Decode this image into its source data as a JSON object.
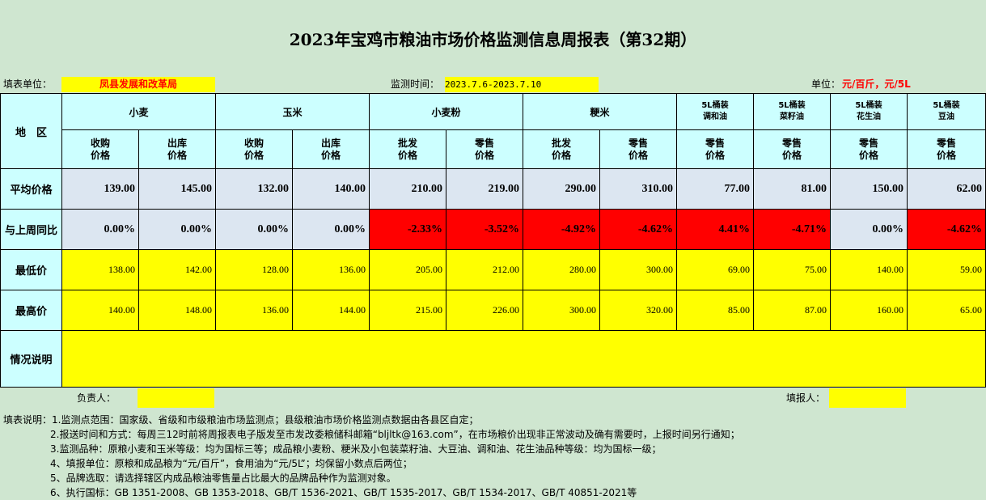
{
  "title": "2023年宝鸡市粮油市场价格监测信息周报表（第32期）",
  "info": {
    "unit_label": "填表单位：",
    "unit_value": "凤县发展和改革局",
    "period_label": "监测时间：",
    "period_value": "2023.7.6-2023.7.10",
    "measure_label": "单位：",
    "measure_value": "元/百斤，元/5L"
  },
  "header": {
    "region": "地　区",
    "groups": [
      "小麦",
      "玉米",
      "小麦粉",
      "粳米",
      "5L桶装调和油",
      "5L桶装菜籽油",
      "5L桶装花生油",
      "5L桶装豆油"
    ],
    "group_lines": [
      [
        "小麦"
      ],
      [
        "玉米"
      ],
      [
        "小麦粉"
      ],
      [
        "粳米"
      ],
      [
        "5L桶装",
        "调和油"
      ],
      [
        "5L桶装",
        "菜籽油"
      ],
      [
        "5L桶装",
        "花生油"
      ],
      [
        "5L桶装",
        "豆油"
      ]
    ],
    "subcols": [
      [
        "收购",
        "价格"
      ],
      [
        "出库",
        "价格"
      ],
      [
        "收购",
        "价格"
      ],
      [
        "出库",
        "价格"
      ],
      [
        "批发",
        "价格"
      ],
      [
        "零售",
        "价格"
      ],
      [
        "批发",
        "价格"
      ],
      [
        "零售",
        "价格"
      ],
      [
        "零售",
        "价格"
      ],
      [
        "零售",
        "价格"
      ],
      [
        "零售",
        "价格"
      ],
      [
        "零售",
        "价格"
      ]
    ]
  },
  "rows": {
    "avg": {
      "label": "平均价格",
      "values": [
        "139.00",
        "145.00",
        "132.00",
        "140.00",
        "210.00",
        "219.00",
        "290.00",
        "310.00",
        "77.00",
        "81.00",
        "150.00",
        "62.00"
      ]
    },
    "yoy": {
      "label": "与上周同比",
      "values": [
        "0.00%",
        "0.00%",
        "0.00%",
        "0.00%",
        "-2.33%",
        "-3.52%",
        "-4.92%",
        "-4.62%",
        "4.41%",
        "-4.71%",
        "0.00%",
        "-4.62%"
      ]
    },
    "min": {
      "label": "最低价",
      "values": [
        "138.00",
        "142.00",
        "128.00",
        "136.00",
        "205.00",
        "212.00",
        "280.00",
        "300.00",
        "69.00",
        "75.00",
        "140.00",
        "59.00"
      ]
    },
    "max": {
      "label": "最高价",
      "values": [
        "140.00",
        "148.00",
        "136.00",
        "144.00",
        "215.00",
        "226.00",
        "300.00",
        "320.00",
        "85.00",
        "87.00",
        "160.00",
        "65.00"
      ]
    },
    "notes": {
      "label": "情况说明",
      "value": ""
    }
  },
  "sign": {
    "owner_label": "负责人：",
    "owner_value": "",
    "filler_label": "填报人：",
    "filler_value": ""
  },
  "notes": [
    "填表说明：1.监测点范围：国家级、省级和市级粮油市场监测点；县级粮油市场价格监测点数据由各县区自定；",
    "2.报送时间和方式：每周三12时前将周报表电子版发至市发改委粮储科邮箱“bljltk@163.com”，在市场粮价出现非正常波动及确有需要时，上报时间另行通知；",
    "3.监测品种：原粮小麦和玉米等级：均为国标三等；成品粮小麦粉、粳米及小包装菜籽油、大豆油、调和油、花生油品种等级：均为国标一级；",
    "4、填报单位：原粮和成品粮为“元/百斤”，食用油为“元/5L”；均保留小数点后两位；",
    "5、品牌选取：请选择辖区内成品粮油零售量占比最大的品牌品种作为监测对象。",
    "6、执行国标：GB 1351-2008、GB 1353-2018、GB/T 1536-2021、GB/T 1535-2017、GB/T 1534-2017、GB/T 40851-2021等"
  ],
  "colors": {
    "background": "#cfe6d0",
    "header": "#ccffff",
    "avg": "#dce6f1",
    "highlight": "#ffff00",
    "decline": "#ff0000"
  }
}
